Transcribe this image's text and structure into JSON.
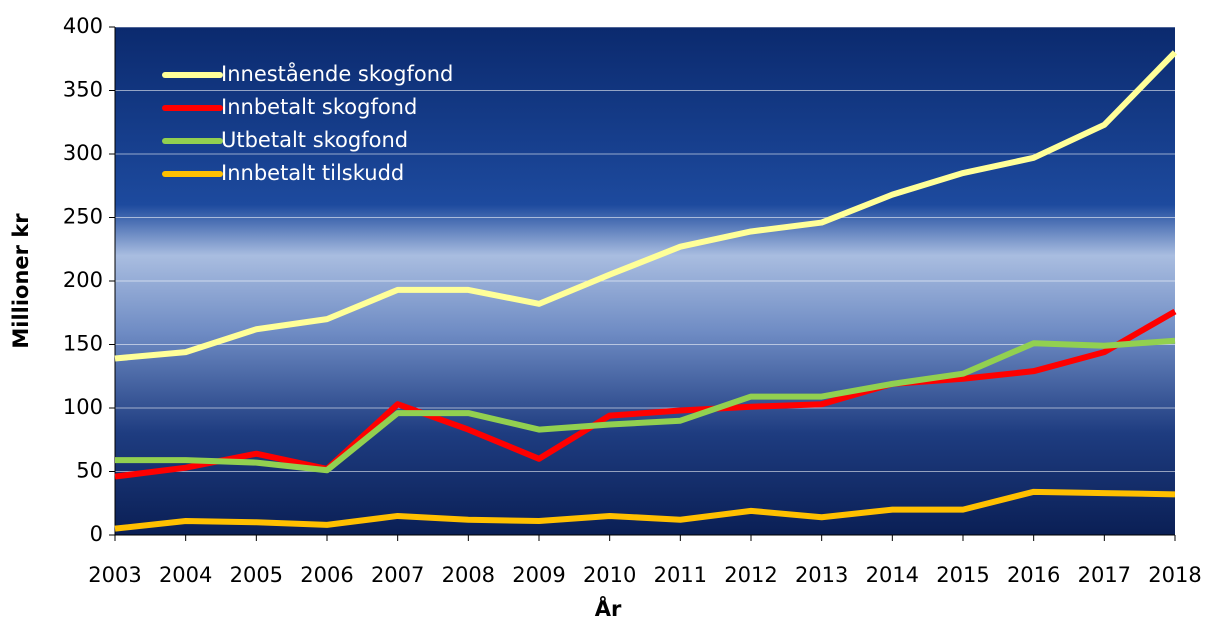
{
  "chart_data": {
    "type": "line",
    "x_label": "År",
    "y_label": "Millioner kr",
    "x": [
      2003,
      2004,
      2005,
      2006,
      2007,
      2008,
      2009,
      2010,
      2011,
      2012,
      2013,
      2014,
      2015,
      2016,
      2017,
      2018
    ],
    "xlim": [
      2003,
      2018
    ],
    "xticks": [
      2003,
      2004,
      2005,
      2006,
      2007,
      2008,
      2009,
      2010,
      2011,
      2012,
      2013,
      2014,
      2015,
      2016,
      2017,
      2018
    ],
    "ylim": [
      0,
      400
    ],
    "yticks": [
      0,
      50,
      100,
      150,
      200,
      250,
      300,
      350,
      400
    ],
    "grid": true,
    "legend": "top-left",
    "series": [
      {
        "name": "Innestående skogfond",
        "color": "#ffff99",
        "values": [
          139,
          144,
          162,
          170,
          193,
          193,
          182,
          205,
          227,
          239,
          246,
          268,
          285,
          297,
          323,
          380
        ]
      },
      {
        "name": "Innbetalt skogfond",
        "color": "#ff0000",
        "values": [
          46,
          53,
          64,
          52,
          103,
          83,
          60,
          94,
          98,
          101,
          103,
          119,
          123,
          129,
          144,
          176
        ]
      },
      {
        "name": "Utbetalt skogfond",
        "color": "#92d050",
        "values": [
          59,
          59,
          57,
          51,
          96,
          96,
          83,
          87,
          90,
          109,
          109,
          119,
          127,
          151,
          149,
          153
        ]
      },
      {
        "name": "Innbetalt tilskudd",
        "color": "#ffc000",
        "values": [
          5,
          11,
          10,
          8,
          15,
          12,
          11,
          15,
          12,
          19,
          14,
          20,
          20,
          34,
          33,
          32
        ]
      }
    ]
  }
}
